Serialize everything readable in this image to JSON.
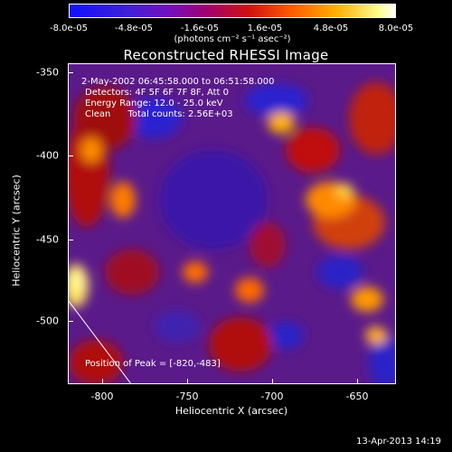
{
  "colorbar": {
    "ticks": [
      "-8.0e-05",
      "-4.8e-05",
      "-1.6e-05",
      "1.6e-05",
      "4.8e-05",
      "8.0e-05"
    ],
    "unit": "(photons cm⁻² s⁻¹ asec⁻²)",
    "range": [
      -8e-05,
      8e-05
    ],
    "colors": [
      "#1010ff",
      "#7010c0",
      "#d01010",
      "#ff5a00",
      "#ffb000",
      "#ffffff"
    ]
  },
  "title": "Reconstructed RHESSI Image",
  "info": {
    "time": "2-May-2002 06:45:58.000 to 06:51:58.000",
    "detectors": "Detectors: 4F 5F 6F 7F 8F, Att 0",
    "energy": "Energy Range: 12.0 - 25.0 keV",
    "clean": "Clean      Total counts: 2.56E+03"
  },
  "peak": "Position of Peak = [-820,-483]",
  "axes": {
    "xlabel": "Heliocentric X (arcsec)",
    "ylabel": "Heliocentric Y (arcsec)",
    "xticks": [
      "-800",
      "-750",
      "-700",
      "-650"
    ],
    "yticks": [
      "-350",
      "-400",
      "-450",
      "-500"
    ],
    "xrange": [
      -820,
      -627
    ],
    "yrange": [
      -540,
      -350
    ]
  },
  "footer": "13-Apr-2013 14:19"
}
